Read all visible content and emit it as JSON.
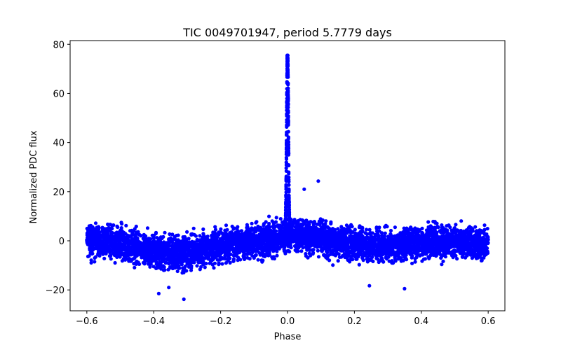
{
  "chart_data": {
    "type": "scatter",
    "title": "TIC 0049701947, period 5.7779 days",
    "xlabel": "Phase",
    "ylabel": "Normalized PDC flux",
    "xlim": [
      -0.65,
      0.65
    ],
    "ylim": [
      -28.5,
      81.5
    ],
    "xticks": [
      -0.6,
      -0.4,
      -0.2,
      0.0,
      0.2,
      0.4,
      0.6
    ],
    "xtick_labels": [
      "−0.6",
      "−0.4",
      "−0.2",
      "0.0",
      "0.2",
      "0.4",
      "0.6"
    ],
    "yticks": [
      -20,
      0,
      20,
      40,
      60,
      80
    ],
    "ytick_labels": [
      "−20",
      "0",
      "20",
      "40",
      "60",
      "80"
    ],
    "marker_color": "#0000ff",
    "grid": false,
    "series": [
      {
        "name": "PDC flux",
        "description_points": "Dense cloud of points across phase -0.6 to 0.6. Baseline flux near 0 with scatter of about +/-12; broad dip to about -5 near phase -0.35; sharp peak reaching about 75 at phase 0.0.",
        "baseline_profile": {
          "phase": [
            -0.6,
            -0.5,
            -0.4,
            -0.35,
            -0.3,
            -0.2,
            -0.1,
            -0.02,
            0.02,
            0.1,
            0.2,
            0.3,
            0.4,
            0.5,
            0.6
          ],
          "median_flux": [
            0.5,
            -1.0,
            -4.0,
            -5.0,
            -4.5,
            -2.0,
            0.0,
            1.5,
            2.5,
            1.0,
            -1.0,
            -2.0,
            -0.5,
            0.0,
            -1.5
          ],
          "scatter": [
            6,
            6,
            6,
            6,
            6,
            6,
            6,
            6,
            6,
            6,
            6,
            6,
            6,
            6,
            6
          ]
        },
        "peak": {
          "phase": 0.0,
          "max_flux": 75.5,
          "width": 0.008
        },
        "outliers": [
          {
            "x": 0.092,
            "y": 24.3
          },
          {
            "x": 0.05,
            "y": 21.0
          },
          {
            "x": -0.385,
            "y": -21.5
          },
          {
            "x": -0.31,
            "y": -23.8
          },
          {
            "x": 0.245,
            "y": -18.3
          },
          {
            "x": 0.35,
            "y": -19.5
          },
          {
            "x": -0.355,
            "y": -19.0
          }
        ]
      }
    ]
  }
}
